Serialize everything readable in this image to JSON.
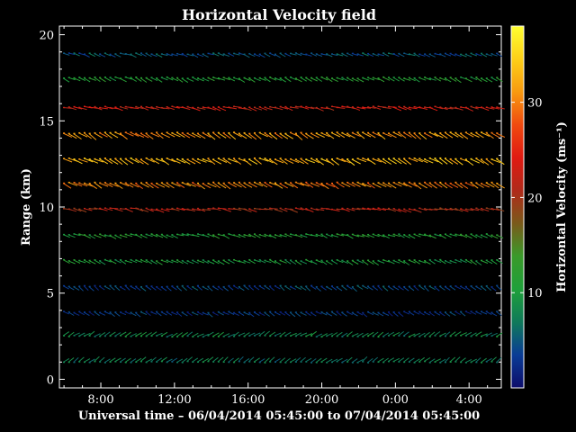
{
  "chart_data": {
    "type": "scatter",
    "title": "Horizontal Velocity field",
    "xlabel": "Universal time – 06/04/2014 05:45:00 to 07/04/2014 05:45:00",
    "ylabel": "Range (km)",
    "colorbar_label": "Horizontal Velocity (ms⁻¹)",
    "xlim_hours": [
      5.75,
      29.75
    ],
    "x_ticks": [
      {
        "hour": 8,
        "label": "8:00"
      },
      {
        "hour": 12,
        "label": "12:00"
      },
      {
        "hour": 16,
        "label": "16:00"
      },
      {
        "hour": 20,
        "label": "20:00"
      },
      {
        "hour": 24,
        "label": "0:00"
      },
      {
        "hour": 28,
        "label": "4:00"
      }
    ],
    "ylim": [
      -0.5,
      20.5
    ],
    "y_ticks": [
      0,
      5,
      10,
      15,
      20
    ],
    "colorbar_range": [
      0,
      38
    ],
    "colorbar_ticks": [
      10,
      20,
      30
    ],
    "grid": false,
    "range_levels": [
      {
        "range_km": 1.0,
        "speed": 7,
        "direction_deg": 35
      },
      {
        "range_km": 2.5,
        "speed": 8,
        "direction_deg": 30
      },
      {
        "range_km": 3.9,
        "speed": 3,
        "direction_deg": -30
      },
      {
        "range_km": 5.4,
        "speed": 4,
        "direction_deg": -35
      },
      {
        "range_km": 6.9,
        "speed": 10,
        "direction_deg": -25
      },
      {
        "range_km": 8.4,
        "speed": 11,
        "direction_deg": -20
      },
      {
        "range_km": 9.9,
        "speed": 21,
        "direction_deg": -12
      },
      {
        "range_km": 11.4,
        "speed": 30,
        "direction_deg": -28
      },
      {
        "range_km": 12.8,
        "speed": 33,
        "direction_deg": -28
      },
      {
        "range_km": 14.3,
        "speed": 31,
        "direction_deg": -32
      },
      {
        "range_km": 15.8,
        "speed": 22,
        "direction_deg": -15
      },
      {
        "range_km": 17.5,
        "speed": 11,
        "direction_deg": -25
      },
      {
        "range_km": 18.9,
        "speed": 5,
        "direction_deg": -20
      }
    ]
  },
  "colors": {
    "background": "#000000",
    "foreground": "#ffffff",
    "colormap": [
      "#0d0d6b",
      "#0a3c96",
      "#0f7a5a",
      "#1fa03a",
      "#3a9a2a",
      "#7a5a1a",
      "#b02a1a",
      "#e01a12",
      "#f04a10",
      "#f89a10",
      "#fdd018",
      "#ffff30"
    ]
  }
}
